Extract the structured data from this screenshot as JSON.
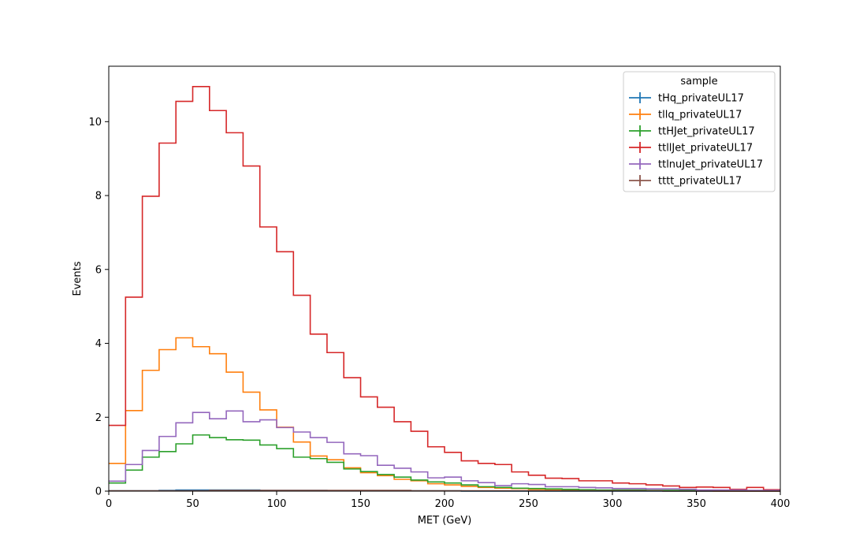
{
  "chart_data": {
    "type": "step-histogram",
    "xlabel": "MET (GeV)",
    "ylabel": "Events",
    "xlim": [
      0,
      400
    ],
    "ylim": [
      0,
      11.5
    ],
    "xticks": [
      0,
      50,
      100,
      150,
      200,
      250,
      300,
      350,
      400
    ],
    "yticks": [
      0,
      2,
      4,
      6,
      8,
      10
    ],
    "grid": false,
    "legend": {
      "title": "sample",
      "placement": "top-right"
    },
    "bin_edges": [
      0,
      10,
      20,
      30,
      40,
      50,
      60,
      70,
      80,
      90,
      100,
      110,
      120,
      130,
      140,
      150,
      160,
      170,
      180,
      190,
      200,
      210,
      220,
      230,
      240,
      250,
      260,
      270,
      280,
      290,
      300,
      310,
      320,
      330,
      340,
      350,
      360,
      370,
      380,
      390,
      400
    ],
    "series": [
      {
        "name": "tHq_privateUL17",
        "color": "#1f77b4",
        "values": [
          0.01,
          0.01,
          0.01,
          0.02,
          0.03,
          0.03,
          0.03,
          0.03,
          0.03,
          0.02,
          0.02,
          0.02,
          0.02,
          0.01,
          0.01,
          0.01,
          0.01,
          0.01,
          0.01,
          0.01,
          0.01,
          0.0,
          0.0,
          0.0,
          0.0,
          0.0,
          0.0,
          0.0,
          0.0,
          0.0,
          0.0,
          0.0,
          0.0,
          0.0,
          0.0,
          0.0,
          0.0,
          0.0,
          0.0,
          0.0
        ]
      },
      {
        "name": "tllq_privateUL17",
        "color": "#ff7f0e",
        "values": [
          0.75,
          2.18,
          3.27,
          3.83,
          4.15,
          3.91,
          3.72,
          3.22,
          2.68,
          2.2,
          1.73,
          1.33,
          0.95,
          0.85,
          0.63,
          0.5,
          0.42,
          0.32,
          0.28,
          0.2,
          0.17,
          0.13,
          0.1,
          0.08,
          0.07,
          0.05,
          0.04,
          0.03,
          0.03,
          0.02,
          0.02,
          0.02,
          0.01,
          0.01,
          0.01,
          0.01,
          0.0,
          0.0,
          0.0,
          0.0
        ]
      },
      {
        "name": "ttHJet_privateUL17",
        "color": "#2ca02c",
        "values": [
          0.22,
          0.57,
          0.92,
          1.07,
          1.28,
          1.52,
          1.45,
          1.39,
          1.38,
          1.25,
          1.15,
          0.92,
          0.88,
          0.78,
          0.6,
          0.53,
          0.45,
          0.38,
          0.3,
          0.25,
          0.22,
          0.17,
          0.12,
          0.1,
          0.08,
          0.07,
          0.06,
          0.05,
          0.04,
          0.03,
          0.03,
          0.03,
          0.02,
          0.02,
          0.02,
          0.01,
          0.01,
          0.01,
          0.01,
          0.01
        ]
      },
      {
        "name": "ttllJet_privateUL17",
        "color": "#d62728",
        "values": [
          1.78,
          5.25,
          7.98,
          9.42,
          10.55,
          10.95,
          10.3,
          9.7,
          8.8,
          7.15,
          6.48,
          5.3,
          4.25,
          3.75,
          3.07,
          2.55,
          2.27,
          1.88,
          1.62,
          1.2,
          1.05,
          0.82,
          0.75,
          0.72,
          0.52,
          0.43,
          0.35,
          0.34,
          0.28,
          0.28,
          0.22,
          0.2,
          0.17,
          0.14,
          0.1,
          0.11,
          0.1,
          0.05,
          0.1,
          0.04
        ]
      },
      {
        "name": "ttlnuJet_privateUL17",
        "color": "#9467bd",
        "values": [
          0.27,
          0.72,
          1.1,
          1.48,
          1.85,
          2.13,
          1.96,
          2.17,
          1.88,
          1.93,
          1.72,
          1.6,
          1.45,
          1.32,
          1.01,
          0.96,
          0.7,
          0.62,
          0.52,
          0.36,
          0.38,
          0.28,
          0.23,
          0.15,
          0.2,
          0.18,
          0.12,
          0.12,
          0.1,
          0.09,
          0.07,
          0.07,
          0.06,
          0.06,
          0.05,
          0.03,
          0.03,
          0.03,
          0.02,
          0.02
        ]
      },
      {
        "name": "tttt_privateUL17",
        "color": "#8c564b",
        "values": [
          0.01,
          0.01,
          0.01,
          0.01,
          0.01,
          0.01,
          0.02,
          0.02,
          0.02,
          0.02,
          0.02,
          0.02,
          0.02,
          0.02,
          0.02,
          0.02,
          0.02,
          0.02,
          0.01,
          0.01,
          0.01,
          0.01,
          0.01,
          0.01,
          0.01,
          0.01,
          0.01,
          0.01,
          0.01,
          0.01,
          0.01,
          0.01,
          0.01,
          0.0,
          0.0,
          0.0,
          0.0,
          0.0,
          0.0,
          0.0
        ]
      }
    ]
  }
}
